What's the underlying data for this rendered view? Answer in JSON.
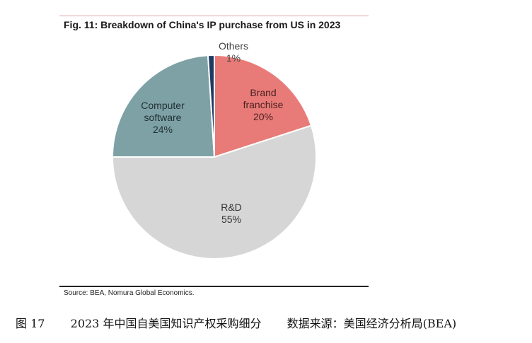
{
  "chart_data": {
    "type": "pie",
    "title": "Fig. 11: Breakdown of China's IP purchase from US in 2023",
    "slices": [
      {
        "label_lines": [
          "Brand",
          "franchise"
        ],
        "value": 20,
        "value_text": "20%",
        "color": "#e87b78"
      },
      {
        "label_lines": [
          "R&D"
        ],
        "value": 55,
        "value_text": "55%",
        "color": "#d6d6d6"
      },
      {
        "label_lines": [
          "Computer",
          "software"
        ],
        "value": 24,
        "value_text": "24%",
        "color": "#7ea1a6"
      },
      {
        "label_lines": [
          "Others"
        ],
        "value": 1,
        "value_text": "1%",
        "color": "#1c3a63"
      }
    ]
  },
  "source": "Source: BEA, Nomura Global Economics.",
  "caption": {
    "figure": "图 17",
    "text": "2023 年中国自美国知识产权采购细分",
    "source": "数据来源：美国经济分析局(BEA)"
  }
}
